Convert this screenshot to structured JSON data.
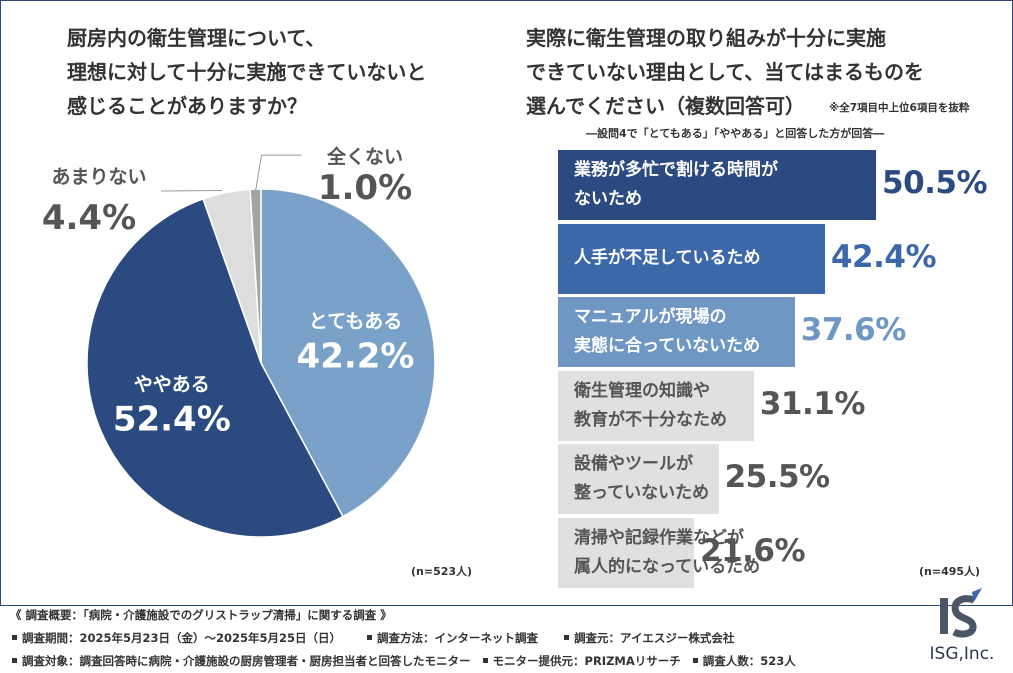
{
  "left_question": [
    "厨房内の衛生管理について、",
    "理想に対して十分に実施できていないと",
    "感じることがありますか？"
  ],
  "right_question": [
    "実際に衛生管理の取り組みが十分に実施",
    "できていない理由として、当てはまるものを",
    "選んでください（複数回答可）"
  ],
  "right_note": "※全7項目中上位6項目を抜粋",
  "right_subtitle": "―設問4で「とてもある」「ややある」と回答した方が回答―",
  "left_n": "(n=523人)",
  "right_n": "(n=495人)",
  "chart_data": [
    {
      "type": "pie",
      "title": "厨房内の衛生管理について、理想に対して十分に実施できていないと感じることがありますか？",
      "slices": [
        {
          "label": "とてもある",
          "value": 42.2,
          "display": "42.2%",
          "color": "#7aa1c7"
        },
        {
          "label": "ややある",
          "value": 52.4,
          "display": "52.4%",
          "color": "#2b4a80"
        },
        {
          "label": "あまりない",
          "value": 4.4,
          "display": "4.4%",
          "color": "#dddddd"
        },
        {
          "label": "全くない",
          "value": 1.0,
          "display": "1.0%",
          "color": "#a4a4a4"
        }
      ]
    },
    {
      "type": "bar",
      "orientation": "horizontal",
      "title": "実際に衛生管理の取り組みが十分に実施できていない理由として、当てはまるものを選んでください（複数回答可）",
      "unit": "%",
      "xlim": [
        0,
        100
      ],
      "categories": [
        [
          "業務が多忙で割ける時間が",
          "ないため"
        ],
        [
          "人手が不足しているため"
        ],
        [
          "マニュアルが現場の",
          "実態に合っていないため"
        ],
        [
          "衛生管理の知識や",
          "教育が不十分なため"
        ],
        [
          "設備やツールが",
          "整っていないため"
        ],
        [
          "清掃や記録作業などが",
          "属人的になっているため"
        ]
      ],
      "values": [
        50.5,
        42.4,
        37.6,
        31.1,
        25.5,
        21.6
      ],
      "value_labels": [
        "50.5%",
        "42.4%",
        "37.6%",
        "31.1%",
        "25.5%",
        "21.6%"
      ],
      "bar_colors": [
        "#2b4a80",
        "#3c68aa",
        "#6e97c4",
        "#e0e0e0",
        "#e0e0e0",
        "#e0e0e0"
      ],
      "label_colors": [
        "#ffffff",
        "#ffffff",
        "#ffffff",
        "#555555",
        "#555555",
        "#555555"
      ],
      "value_colors": [
        "#2b4a80",
        "#3c68aa",
        "#6e97c4",
        "#555555",
        "#555555",
        "#555555"
      ]
    }
  ],
  "footer": {
    "title": "《 調査概要：「病院・介護施設でのグリストラップ清掃」に関する調査 》",
    "line1": [
      "調査期間：2025年5月23日（金）〜2025年5月25日（日）",
      "調査方法：インターネット調査",
      "調査元：アイエスジー株式会社"
    ],
    "line2": [
      "調査対象：調査回答時に病院・介護施設の厨房管理者・厨房担当者と回答したモニター",
      "モニター提供元：PRIZMAリサーチ",
      "調査人数：523人"
    ]
  },
  "logo": {
    "mark": "IS",
    "text": "ISG,Inc."
  }
}
